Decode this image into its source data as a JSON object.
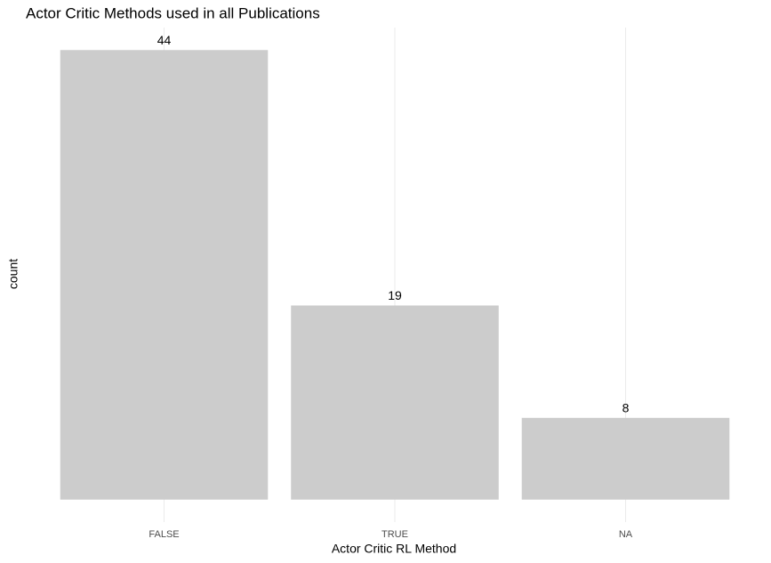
{
  "chart_data": {
    "type": "bar",
    "title": "Actor Critic Methods used in all Publications",
    "x_label": "Actor Critic RL Method",
    "y_label": "count",
    "categories": [
      "FALSE",
      "TRUE",
      "NA"
    ],
    "values": [
      44,
      19,
      8
    ],
    "color": "#cccccc",
    "ylim": [
      -2.2,
      46.2
    ],
    "grid": true
  }
}
